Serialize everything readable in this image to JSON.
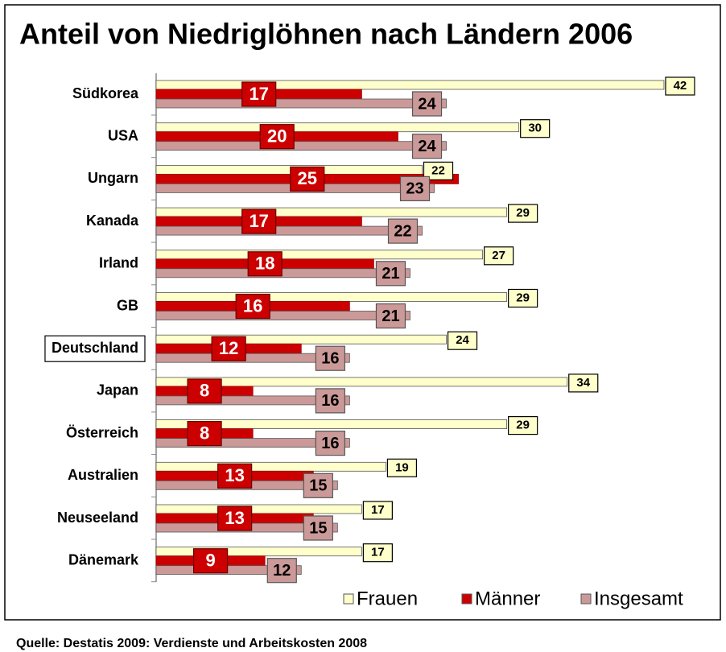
{
  "chart_data": {
    "type": "hbar",
    "title": "Anteil von Niedriglöhnen nach Ländern 2006",
    "source": "Quelle: Destatis 2009: Verdienste und Arbeitskosten 2008",
    "categories": [
      "Südkorea",
      "USA",
      "Ungarn",
      "Kanada",
      "Irland",
      "GB",
      "Deutschland",
      "Japan",
      "Österreich",
      "Australien",
      "Neuseeland",
      "Dänemark"
    ],
    "highlight_index": 6,
    "xlim": [
      0,
      45
    ],
    "legend": "bottom-right",
    "series": [
      {
        "name": "Frauen",
        "color": "#ffffcc",
        "values": [
          42,
          30,
          22,
          29,
          27,
          29,
          24,
          34,
          29,
          19,
          17,
          17
        ]
      },
      {
        "name": "Männer",
        "color": "#cc0000",
        "values": [
          17,
          20,
          25,
          17,
          18,
          16,
          12,
          8,
          8,
          13,
          13,
          9
        ]
      },
      {
        "name": "Insgesamt",
        "color": "#cc9999",
        "values": [
          24,
          24,
          23,
          22,
          21,
          21,
          16,
          16,
          16,
          15,
          15,
          12
        ]
      }
    ]
  }
}
